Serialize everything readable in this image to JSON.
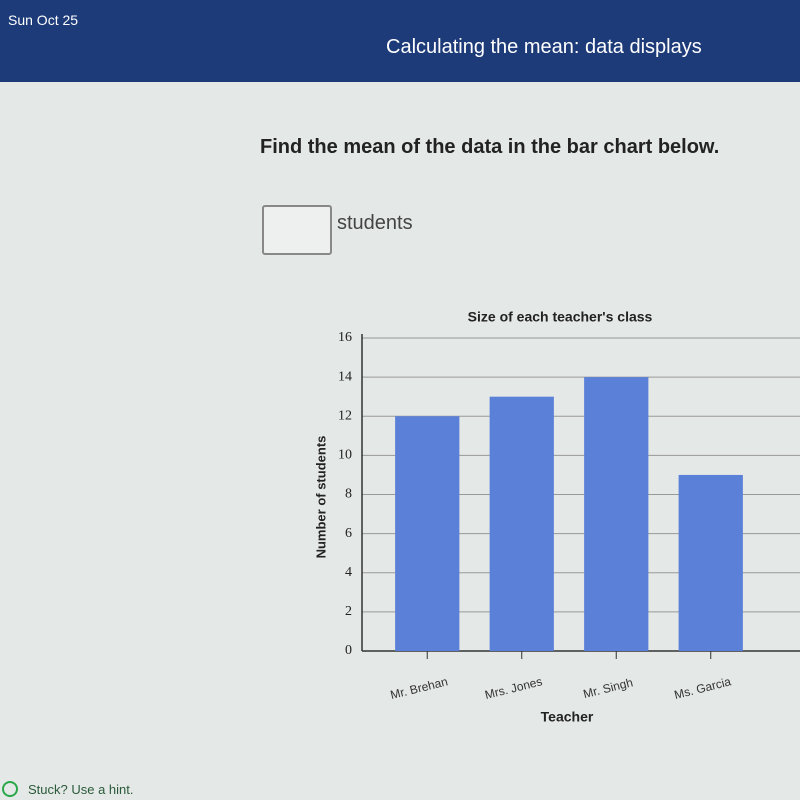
{
  "header": {
    "date": "Sun Oct 25",
    "title": "Calculating the mean: data displays"
  },
  "question": {
    "prompt": "Find the mean of the data in the bar chart below.",
    "unit": "students"
  },
  "hint": "Stuck? Use a hint.",
  "chart_data": {
    "type": "bar",
    "title": "Size of each teacher's class",
    "x_label": "Teacher",
    "y_label": "Number of students",
    "categories": [
      "Mr. Brehan",
      "Mrs. Jones",
      "Mr. Singh",
      "Ms. Garcia"
    ],
    "values": [
      12,
      13,
      14,
      9
    ],
    "color": "#5a80d8",
    "ylim": [
      0,
      16
    ],
    "yticks": [
      0,
      2,
      4,
      6,
      8,
      10,
      12,
      14,
      16
    ],
    "grid": true
  }
}
